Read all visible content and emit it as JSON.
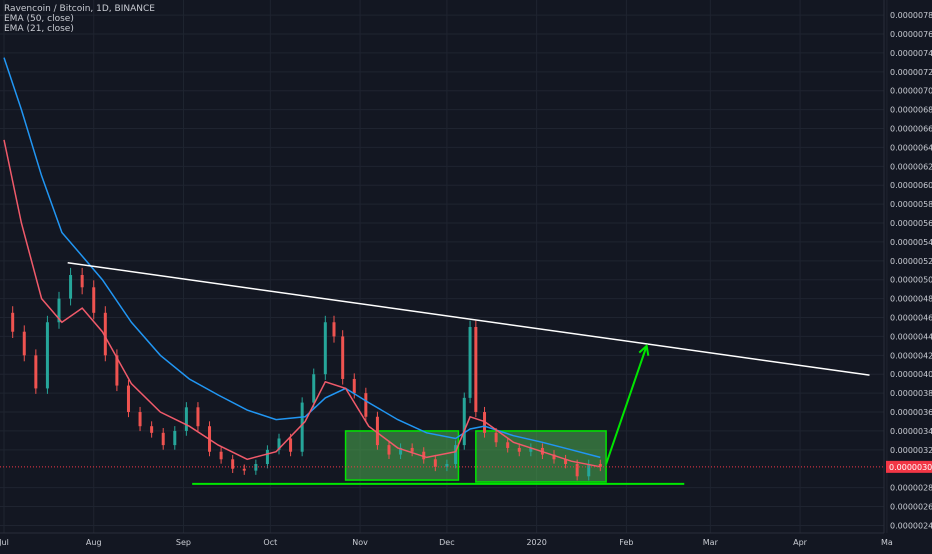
{
  "chart_data": {
    "type": "candlestick",
    "symbol_title": "Ravencoin / Bitcoin, 1D, BINANCE",
    "indicators": [
      {
        "name": "EMA (50, close)",
        "color": "#2196f3"
      },
      {
        "name": "EMA (21, close)",
        "color": "#f05a6a"
      }
    ],
    "x_ticks": [
      "Jul",
      "Aug",
      "Sep",
      "Oct",
      "Nov",
      "Dec",
      "2020",
      "Feb",
      "Mar",
      "Apr",
      "Ma"
    ],
    "x_range": [
      "2019-07-01",
      "2020-04-30"
    ],
    "y_ticks": [
      "0.00000780",
      "0.00000760",
      "0.00000740",
      "0.00000720",
      "0.00000700",
      "0.00000680",
      "0.00000660",
      "0.00000640",
      "0.00000620",
      "0.00000600",
      "0.00000580",
      "0.00000560",
      "0.00000540",
      "0.00000520",
      "0.00000500",
      "0.00000480",
      "0.00000460",
      "0.00000440",
      "0.00000420",
      "0.00000400",
      "0.00000380",
      "0.00000360",
      "0.00000340",
      "0.00000320",
      "0.00000280",
      "0.00000260",
      "0.00000240"
    ],
    "y_range": [
      2.32e-06,
      7.96e-06
    ],
    "last_price": "0.00000302",
    "close_series": [
      [
        "2019-07-01",
        4.65e-06
      ],
      [
        "2019-07-04",
        4.45e-06
      ],
      [
        "2019-07-08",
        4.2e-06
      ],
      [
        "2019-07-12",
        3.85e-06
      ],
      [
        "2019-07-16",
        4.55e-06
      ],
      [
        "2019-07-20",
        4.8e-06
      ],
      [
        "2019-07-24",
        5.05e-06
      ],
      [
        "2019-07-28",
        4.92e-06
      ],
      [
        "2019-08-01",
        4.65e-06
      ],
      [
        "2019-08-05",
        4.2e-06
      ],
      [
        "2019-08-09",
        3.88e-06
      ],
      [
        "2019-08-13",
        3.6e-06
      ],
      [
        "2019-08-17",
        3.45e-06
      ],
      [
        "2019-08-21",
        3.38e-06
      ],
      [
        "2019-08-25",
        3.25e-06
      ],
      [
        "2019-08-29",
        3.4e-06
      ],
      [
        "2019-09-02",
        3.65e-06
      ],
      [
        "2019-09-06",
        3.45e-06
      ],
      [
        "2019-09-10",
        3.18e-06
      ],
      [
        "2019-09-14",
        3.1e-06
      ],
      [
        "2019-09-18",
        3e-06
      ],
      [
        "2019-09-22",
        2.98e-06
      ],
      [
        "2019-09-26",
        3.05e-06
      ],
      [
        "2019-09-30",
        3.2e-06
      ],
      [
        "2019-10-04",
        3.32e-06
      ],
      [
        "2019-10-08",
        3.18e-06
      ],
      [
        "2019-10-12",
        3.7e-06
      ],
      [
        "2019-10-16",
        4e-06
      ],
      [
        "2019-10-20",
        4.55e-06
      ],
      [
        "2019-10-23",
        4.4e-06
      ],
      [
        "2019-10-26",
        3.95e-06
      ],
      [
        "2019-10-30",
        3.8e-06
      ],
      [
        "2019-11-03",
        3.55e-06
      ],
      [
        "2019-11-07",
        3.25e-06
      ],
      [
        "2019-11-11",
        3.15e-06
      ],
      [
        "2019-11-15",
        3.22e-06
      ],
      [
        "2019-11-19",
        3.18e-06
      ],
      [
        "2019-11-23",
        3.1e-06
      ],
      [
        "2019-11-27",
        3.02e-06
      ],
      [
        "2019-12-01",
        3.05e-06
      ],
      [
        "2019-12-04",
        3.25e-06
      ],
      [
        "2019-12-07",
        3.75e-06
      ],
      [
        "2019-12-09",
        4.5e-06
      ],
      [
        "2019-12-11",
        3.6e-06
      ],
      [
        "2019-12-14",
        3.38e-06
      ],
      [
        "2019-12-18",
        3.28e-06
      ],
      [
        "2019-12-22",
        3.22e-06
      ],
      [
        "2019-12-26",
        3.18e-06
      ],
      [
        "2019-12-30",
        3.22e-06
      ],
      [
        "2020-01-03",
        3.15e-06
      ],
      [
        "2020-01-07",
        3.1e-06
      ],
      [
        "2020-01-11",
        3.05e-06
      ],
      [
        "2020-01-15",
        2.92e-06
      ],
      [
        "2020-01-19",
        3.05e-06
      ],
      [
        "2020-01-23",
        3.02e-06
      ]
    ],
    "ema50_series": [
      [
        "2019-07-01",
        7.35e-06
      ],
      [
        "2019-07-07",
        6.8e-06
      ],
      [
        "2019-07-14",
        6.1e-06
      ],
      [
        "2019-07-21",
        5.5e-06
      ],
      [
        "2019-07-28",
        5.25e-06
      ],
      [
        "2019-08-04",
        5e-06
      ],
      [
        "2019-08-14",
        4.55e-06
      ],
      [
        "2019-08-24",
        4.2e-06
      ],
      [
        "2019-09-03",
        3.95e-06
      ],
      [
        "2019-09-13",
        3.78e-06
      ],
      [
        "2019-09-23",
        3.62e-06
      ],
      [
        "2019-10-03",
        3.52e-06
      ],
      [
        "2019-10-13",
        3.55e-06
      ],
      [
        "2019-10-20",
        3.75e-06
      ],
      [
        "2019-10-27",
        3.85e-06
      ],
      [
        "2019-11-04",
        3.7e-06
      ],
      [
        "2019-11-14",
        3.52e-06
      ],
      [
        "2019-11-24",
        3.38e-06
      ],
      [
        "2019-12-04",
        3.32e-06
      ],
      [
        "2019-12-09",
        3.42e-06
      ],
      [
        "2019-12-14",
        3.45e-06
      ],
      [
        "2019-12-24",
        3.35e-06
      ],
      [
        "2020-01-03",
        3.28e-06
      ],
      [
        "2020-01-13",
        3.2e-06
      ],
      [
        "2020-01-23",
        3.12e-06
      ]
    ],
    "ema21_series": [
      [
        "2019-07-01",
        6.48e-06
      ],
      [
        "2019-07-07",
        5.6e-06
      ],
      [
        "2019-07-14",
        4.8e-06
      ],
      [
        "2019-07-21",
        4.55e-06
      ],
      [
        "2019-07-28",
        4.7e-06
      ],
      [
        "2019-08-04",
        4.45e-06
      ],
      [
        "2019-08-14",
        3.9e-06
      ],
      [
        "2019-08-24",
        3.6e-06
      ],
      [
        "2019-09-03",
        3.45e-06
      ],
      [
        "2019-09-13",
        3.25e-06
      ],
      [
        "2019-09-23",
        3.1e-06
      ],
      [
        "2019-10-03",
        3.18e-06
      ],
      [
        "2019-10-13",
        3.5e-06
      ],
      [
        "2019-10-20",
        3.92e-06
      ],
      [
        "2019-10-27",
        3.85e-06
      ],
      [
        "2019-11-04",
        3.45e-06
      ],
      [
        "2019-11-14",
        3.22e-06
      ],
      [
        "2019-11-24",
        3.12e-06
      ],
      [
        "2019-12-04",
        3.18e-06
      ],
      [
        "2019-12-09",
        3.55e-06
      ],
      [
        "2019-12-14",
        3.5e-06
      ],
      [
        "2019-12-24",
        3.28e-06
      ],
      [
        "2020-01-03",
        3.18e-06
      ],
      [
        "2020-01-13",
        3.08e-06
      ],
      [
        "2020-01-23",
        3.02e-06
      ]
    ],
    "annotations": {
      "trendline": {
        "start": [
          "2019-07-23",
          5.18e-06
        ],
        "end": [
          "2020-04-25",
          3.99e-06
        ],
        "color": "#ffffff"
      },
      "support_line": {
        "start": [
          "2019-09-04",
          2.84e-06
        ],
        "end": [
          "2020-02-21",
          2.84e-06
        ],
        "color": "#00e600"
      },
      "boxes": [
        {
          "x": [
            "2019-10-27",
            "2019-12-05"
          ],
          "y": [
            2.88e-06,
            3.4e-06
          ],
          "color": "#4caf50"
        },
        {
          "x": [
            "2019-12-11",
            "2020-01-25"
          ],
          "y": [
            2.86e-06,
            3.4e-06
          ],
          "color": "#4caf50"
        }
      ],
      "arrow": {
        "start": [
          "2020-01-25",
          3.05e-06
        ],
        "end": [
          "2020-02-08",
          4.3e-06
        ],
        "color": "#00e600"
      }
    },
    "colors": {
      "background": "#131722",
      "grid": "#1f2430",
      "axis_text": "#c9ccd3",
      "up": "#26a69a",
      "down": "#ef5350",
      "last_price_bg": "#f23645"
    }
  }
}
